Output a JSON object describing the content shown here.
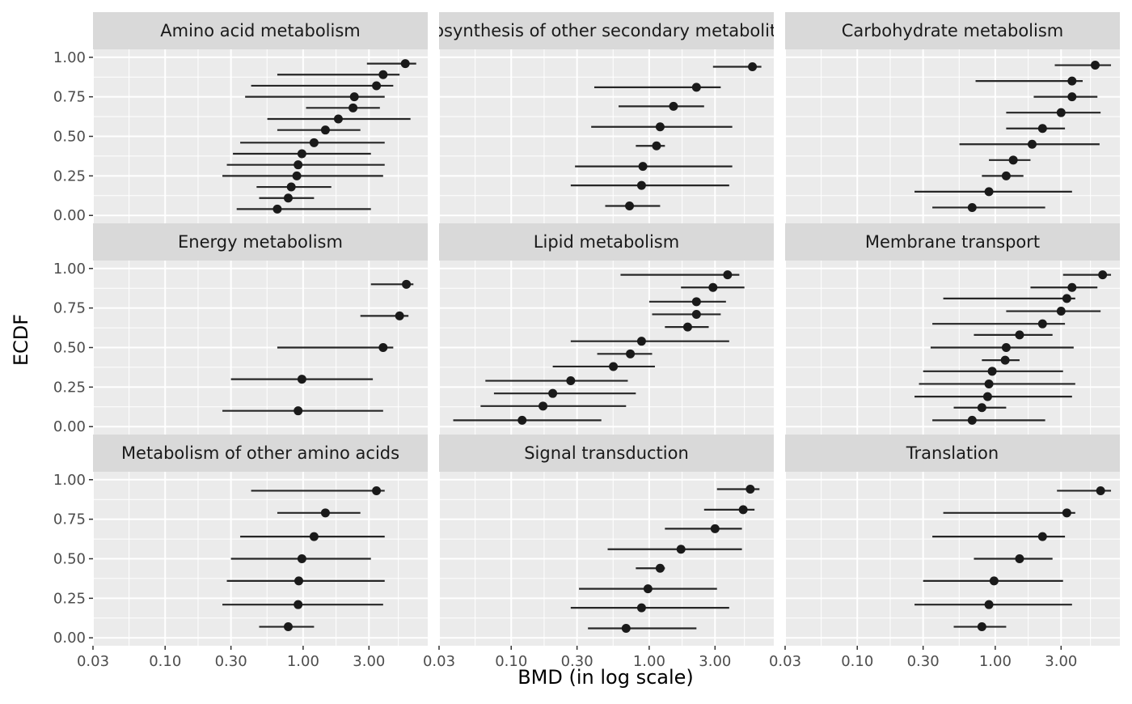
{
  "chart_data": {
    "type": "scatter",
    "subtype": "faceted ECDF dot plot with horizontal interval segments",
    "xlabel": "BMD (in log scale)",
    "ylabel": "ECDF",
    "x_scale": "log10",
    "xlim": [
      0.03,
      8
    ],
    "ylim": [
      0,
      1
    ],
    "x_ticks": [
      0.03,
      0.1,
      0.3,
      1,
      3
    ],
    "x_tick_labels": [
      "0.03",
      "0.10",
      "0.30",
      "1.00",
      "3.00"
    ],
    "y_ticks": [
      0,
      0.25,
      0.5,
      0.75,
      1
    ],
    "y_tick_labels": [
      "0.00",
      "0.25",
      "0.50",
      "0.75",
      "1.00"
    ],
    "grid": true,
    "colors": {
      "panel_bg": "#ebebeb",
      "strip_bg": "#d9d9d9",
      "grid": "#ffffff",
      "point": "#1a1a1a",
      "segment": "#262626"
    },
    "facets": [
      {
        "title": "Amino acid metabolism",
        "points": [
          {
            "ecdf": 0.04,
            "bmd": 0.65,
            "lower": 0.33,
            "upper": 3.1
          },
          {
            "ecdf": 0.11,
            "bmd": 0.78,
            "lower": 0.48,
            "upper": 1.2
          },
          {
            "ecdf": 0.18,
            "bmd": 0.82,
            "lower": 0.46,
            "upper": 1.6
          },
          {
            "ecdf": 0.25,
            "bmd": 0.9,
            "lower": 0.26,
            "upper": 3.8
          },
          {
            "ecdf": 0.32,
            "bmd": 0.92,
            "lower": 0.28,
            "upper": 3.9
          },
          {
            "ecdf": 0.39,
            "bmd": 0.98,
            "lower": 0.31,
            "upper": 3.1
          },
          {
            "ecdf": 0.46,
            "bmd": 1.2,
            "lower": 0.35,
            "upper": 3.9
          },
          {
            "ecdf": 0.54,
            "bmd": 1.45,
            "lower": 0.65,
            "upper": 2.6
          },
          {
            "ecdf": 0.61,
            "bmd": 1.8,
            "lower": 0.55,
            "upper": 6.0
          },
          {
            "ecdf": 0.68,
            "bmd": 2.3,
            "lower": 1.05,
            "upper": 3.6
          },
          {
            "ecdf": 0.75,
            "bmd": 2.35,
            "lower": 0.38,
            "upper": 3.9
          },
          {
            "ecdf": 0.82,
            "bmd": 3.4,
            "lower": 0.42,
            "upper": 4.5
          },
          {
            "ecdf": 0.89,
            "bmd": 3.8,
            "lower": 0.65,
            "upper": 5.0
          },
          {
            "ecdf": 0.96,
            "bmd": 5.5,
            "lower": 2.9,
            "upper": 6.6
          }
        ]
      },
      {
        "title": "Biosynthesis of other secondary metabolites",
        "points": [
          {
            "ecdf": 0.06,
            "bmd": 0.72,
            "lower": 0.48,
            "upper": 1.2
          },
          {
            "ecdf": 0.19,
            "bmd": 0.88,
            "lower": 0.27,
            "upper": 3.8
          },
          {
            "ecdf": 0.31,
            "bmd": 0.9,
            "lower": 0.29,
            "upper": 4.0
          },
          {
            "ecdf": 0.44,
            "bmd": 1.13,
            "lower": 0.8,
            "upper": 1.3
          },
          {
            "ecdf": 0.56,
            "bmd": 1.2,
            "lower": 0.38,
            "upper": 4.0
          },
          {
            "ecdf": 0.69,
            "bmd": 1.5,
            "lower": 0.6,
            "upper": 2.5
          },
          {
            "ecdf": 0.81,
            "bmd": 2.2,
            "lower": 0.4,
            "upper": 3.3
          },
          {
            "ecdf": 0.94,
            "bmd": 5.6,
            "lower": 2.9,
            "upper": 6.5
          }
        ]
      },
      {
        "title": "Carbohydrate metabolism",
        "points": [
          {
            "ecdf": 0.05,
            "bmd": 0.68,
            "lower": 0.35,
            "upper": 2.3
          },
          {
            "ecdf": 0.15,
            "bmd": 0.9,
            "lower": 0.26,
            "upper": 3.6
          },
          {
            "ecdf": 0.25,
            "bmd": 1.2,
            "lower": 0.8,
            "upper": 1.6
          },
          {
            "ecdf": 0.35,
            "bmd": 1.35,
            "lower": 0.9,
            "upper": 1.8
          },
          {
            "ecdf": 0.45,
            "bmd": 1.85,
            "lower": 0.55,
            "upper": 5.7
          },
          {
            "ecdf": 0.55,
            "bmd": 2.2,
            "lower": 1.2,
            "upper": 3.2
          },
          {
            "ecdf": 0.65,
            "bmd": 3.0,
            "lower": 1.2,
            "upper": 5.8
          },
          {
            "ecdf": 0.75,
            "bmd": 3.6,
            "lower": 1.9,
            "upper": 5.5
          },
          {
            "ecdf": 0.85,
            "bmd": 3.6,
            "lower": 0.72,
            "upper": 4.3
          },
          {
            "ecdf": 0.95,
            "bmd": 5.3,
            "lower": 2.7,
            "upper": 6.9
          }
        ]
      },
      {
        "title": "Energy metabolism",
        "points": [
          {
            "ecdf": 0.1,
            "bmd": 0.92,
            "lower": 0.26,
            "upper": 3.8
          },
          {
            "ecdf": 0.3,
            "bmd": 0.98,
            "lower": 0.3,
            "upper": 3.2
          },
          {
            "ecdf": 0.5,
            "bmd": 3.8,
            "lower": 0.65,
            "upper": 4.5
          },
          {
            "ecdf": 0.7,
            "bmd": 5.0,
            "lower": 2.6,
            "upper": 5.8
          },
          {
            "ecdf": 0.9,
            "bmd": 5.6,
            "lower": 3.1,
            "upper": 6.3
          }
        ]
      },
      {
        "title": "Lipid metabolism",
        "points": [
          {
            "ecdf": 0.04,
            "bmd": 0.12,
            "lower": 0.038,
            "upper": 0.45
          },
          {
            "ecdf": 0.13,
            "bmd": 0.17,
            "lower": 0.06,
            "upper": 0.68
          },
          {
            "ecdf": 0.21,
            "bmd": 0.2,
            "lower": 0.075,
            "upper": 0.8
          },
          {
            "ecdf": 0.29,
            "bmd": 0.27,
            "lower": 0.065,
            "upper": 0.7
          },
          {
            "ecdf": 0.38,
            "bmd": 0.55,
            "lower": 0.2,
            "upper": 1.1
          },
          {
            "ecdf": 0.46,
            "bmd": 0.73,
            "lower": 0.42,
            "upper": 1.05
          },
          {
            "ecdf": 0.54,
            "bmd": 0.88,
            "lower": 0.27,
            "upper": 3.8
          },
          {
            "ecdf": 0.63,
            "bmd": 1.9,
            "lower": 1.3,
            "upper": 2.7
          },
          {
            "ecdf": 0.71,
            "bmd": 2.2,
            "lower": 1.05,
            "upper": 3.3
          },
          {
            "ecdf": 0.79,
            "bmd": 2.2,
            "lower": 1.0,
            "upper": 3.6
          },
          {
            "ecdf": 0.88,
            "bmd": 2.9,
            "lower": 1.7,
            "upper": 4.9
          },
          {
            "ecdf": 0.96,
            "bmd": 3.7,
            "lower": 0.62,
            "upper": 4.5
          }
        ]
      },
      {
        "title": "Membrane transport",
        "points": [
          {
            "ecdf": 0.04,
            "bmd": 0.68,
            "lower": 0.35,
            "upper": 2.3
          },
          {
            "ecdf": 0.12,
            "bmd": 0.8,
            "lower": 0.5,
            "upper": 1.2
          },
          {
            "ecdf": 0.19,
            "bmd": 0.88,
            "lower": 0.26,
            "upper": 3.6
          },
          {
            "ecdf": 0.27,
            "bmd": 0.9,
            "lower": 0.28,
            "upper": 3.8
          },
          {
            "ecdf": 0.35,
            "bmd": 0.95,
            "lower": 0.3,
            "upper": 3.1
          },
          {
            "ecdf": 0.42,
            "bmd": 1.18,
            "lower": 0.8,
            "upper": 1.5
          },
          {
            "ecdf": 0.5,
            "bmd": 1.2,
            "lower": 0.34,
            "upper": 3.7
          },
          {
            "ecdf": 0.58,
            "bmd": 1.5,
            "lower": 0.7,
            "upper": 2.6
          },
          {
            "ecdf": 0.65,
            "bmd": 2.2,
            "lower": 0.35,
            "upper": 3.2
          },
          {
            "ecdf": 0.73,
            "bmd": 3.0,
            "lower": 1.2,
            "upper": 5.8
          },
          {
            "ecdf": 0.81,
            "bmd": 3.3,
            "lower": 0.42,
            "upper": 3.8
          },
          {
            "ecdf": 0.88,
            "bmd": 3.6,
            "lower": 1.8,
            "upper": 5.5
          },
          {
            "ecdf": 0.96,
            "bmd": 6.0,
            "lower": 3.1,
            "upper": 6.9
          }
        ]
      },
      {
        "title": "Metabolism of other amino acids",
        "points": [
          {
            "ecdf": 0.07,
            "bmd": 0.78,
            "lower": 0.48,
            "upper": 1.2
          },
          {
            "ecdf": 0.21,
            "bmd": 0.92,
            "lower": 0.26,
            "upper": 3.8
          },
          {
            "ecdf": 0.36,
            "bmd": 0.93,
            "lower": 0.28,
            "upper": 3.9
          },
          {
            "ecdf": 0.5,
            "bmd": 0.98,
            "lower": 0.3,
            "upper": 3.1
          },
          {
            "ecdf": 0.64,
            "bmd": 1.2,
            "lower": 0.35,
            "upper": 3.9
          },
          {
            "ecdf": 0.79,
            "bmd": 1.45,
            "lower": 0.65,
            "upper": 2.6
          },
          {
            "ecdf": 0.93,
            "bmd": 3.4,
            "lower": 0.42,
            "upper": 3.9
          }
        ]
      },
      {
        "title": "Signal transduction",
        "points": [
          {
            "ecdf": 0.06,
            "bmd": 0.68,
            "lower": 0.36,
            "upper": 2.2
          },
          {
            "ecdf": 0.19,
            "bmd": 0.88,
            "lower": 0.27,
            "upper": 3.8
          },
          {
            "ecdf": 0.31,
            "bmd": 0.98,
            "lower": 0.31,
            "upper": 3.1
          },
          {
            "ecdf": 0.44,
            "bmd": 1.2,
            "lower": 0.8,
            "upper": 1.3
          },
          {
            "ecdf": 0.56,
            "bmd": 1.7,
            "lower": 0.5,
            "upper": 4.7
          },
          {
            "ecdf": 0.69,
            "bmd": 3.0,
            "lower": 1.3,
            "upper": 4.7
          },
          {
            "ecdf": 0.81,
            "bmd": 4.8,
            "lower": 2.5,
            "upper": 5.8
          },
          {
            "ecdf": 0.94,
            "bmd": 5.4,
            "lower": 3.1,
            "upper": 6.3
          }
        ]
      },
      {
        "title": "Translation",
        "points": [
          {
            "ecdf": 0.07,
            "bmd": 0.8,
            "lower": 0.5,
            "upper": 1.2
          },
          {
            "ecdf": 0.21,
            "bmd": 0.9,
            "lower": 0.26,
            "upper": 3.6
          },
          {
            "ecdf": 0.36,
            "bmd": 0.98,
            "lower": 0.3,
            "upper": 3.1
          },
          {
            "ecdf": 0.5,
            "bmd": 1.5,
            "lower": 0.7,
            "upper": 2.6
          },
          {
            "ecdf": 0.64,
            "bmd": 2.2,
            "lower": 0.35,
            "upper": 3.2
          },
          {
            "ecdf": 0.79,
            "bmd": 3.3,
            "lower": 0.42,
            "upper": 3.8
          },
          {
            "ecdf": 0.93,
            "bmd": 5.8,
            "lower": 2.8,
            "upper": 6.9
          }
        ]
      }
    ]
  }
}
